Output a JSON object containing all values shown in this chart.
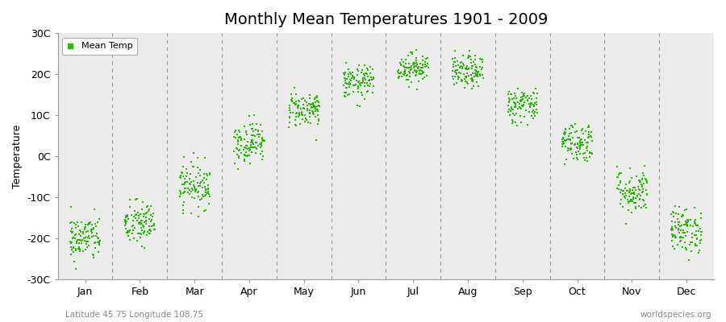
{
  "title": "Monthly Mean Temperatures 1901 - 2009",
  "ylabel": "Temperature",
  "xlabel_months": [
    "Jan",
    "Feb",
    "Mar",
    "Apr",
    "May",
    "Jun",
    "Jul",
    "Aug",
    "Sep",
    "Oct",
    "Nov",
    "Dec"
  ],
  "subtitle": "Latitude 45.75 Longitude 108.75",
  "watermark": "worldspecies.org",
  "ylim": [
    -30,
    30
  ],
  "yticks": [
    -30,
    -20,
    -10,
    0,
    10,
    20,
    30
  ],
  "ytick_labels": [
    "-30C",
    "-20C",
    "-10C",
    "0C",
    "10C",
    "20C",
    "30C"
  ],
  "dot_color": "#22bb00",
  "bg_color": "#ebebeb",
  "n_years": 109,
  "monthly_means": [
    -20.0,
    -16.5,
    -7.0,
    3.5,
    11.5,
    18.0,
    21.5,
    20.5,
    12.5,
    3.5,
    -8.5,
    -18.0
  ],
  "monthly_stds": [
    2.8,
    2.8,
    2.8,
    2.5,
    2.2,
    2.0,
    1.8,
    2.0,
    2.2,
    2.5,
    2.8,
    2.8
  ],
  "legend_label": "Mean Temp",
  "title_fontsize": 14,
  "axis_fontsize": 9,
  "tick_fontsize": 9
}
